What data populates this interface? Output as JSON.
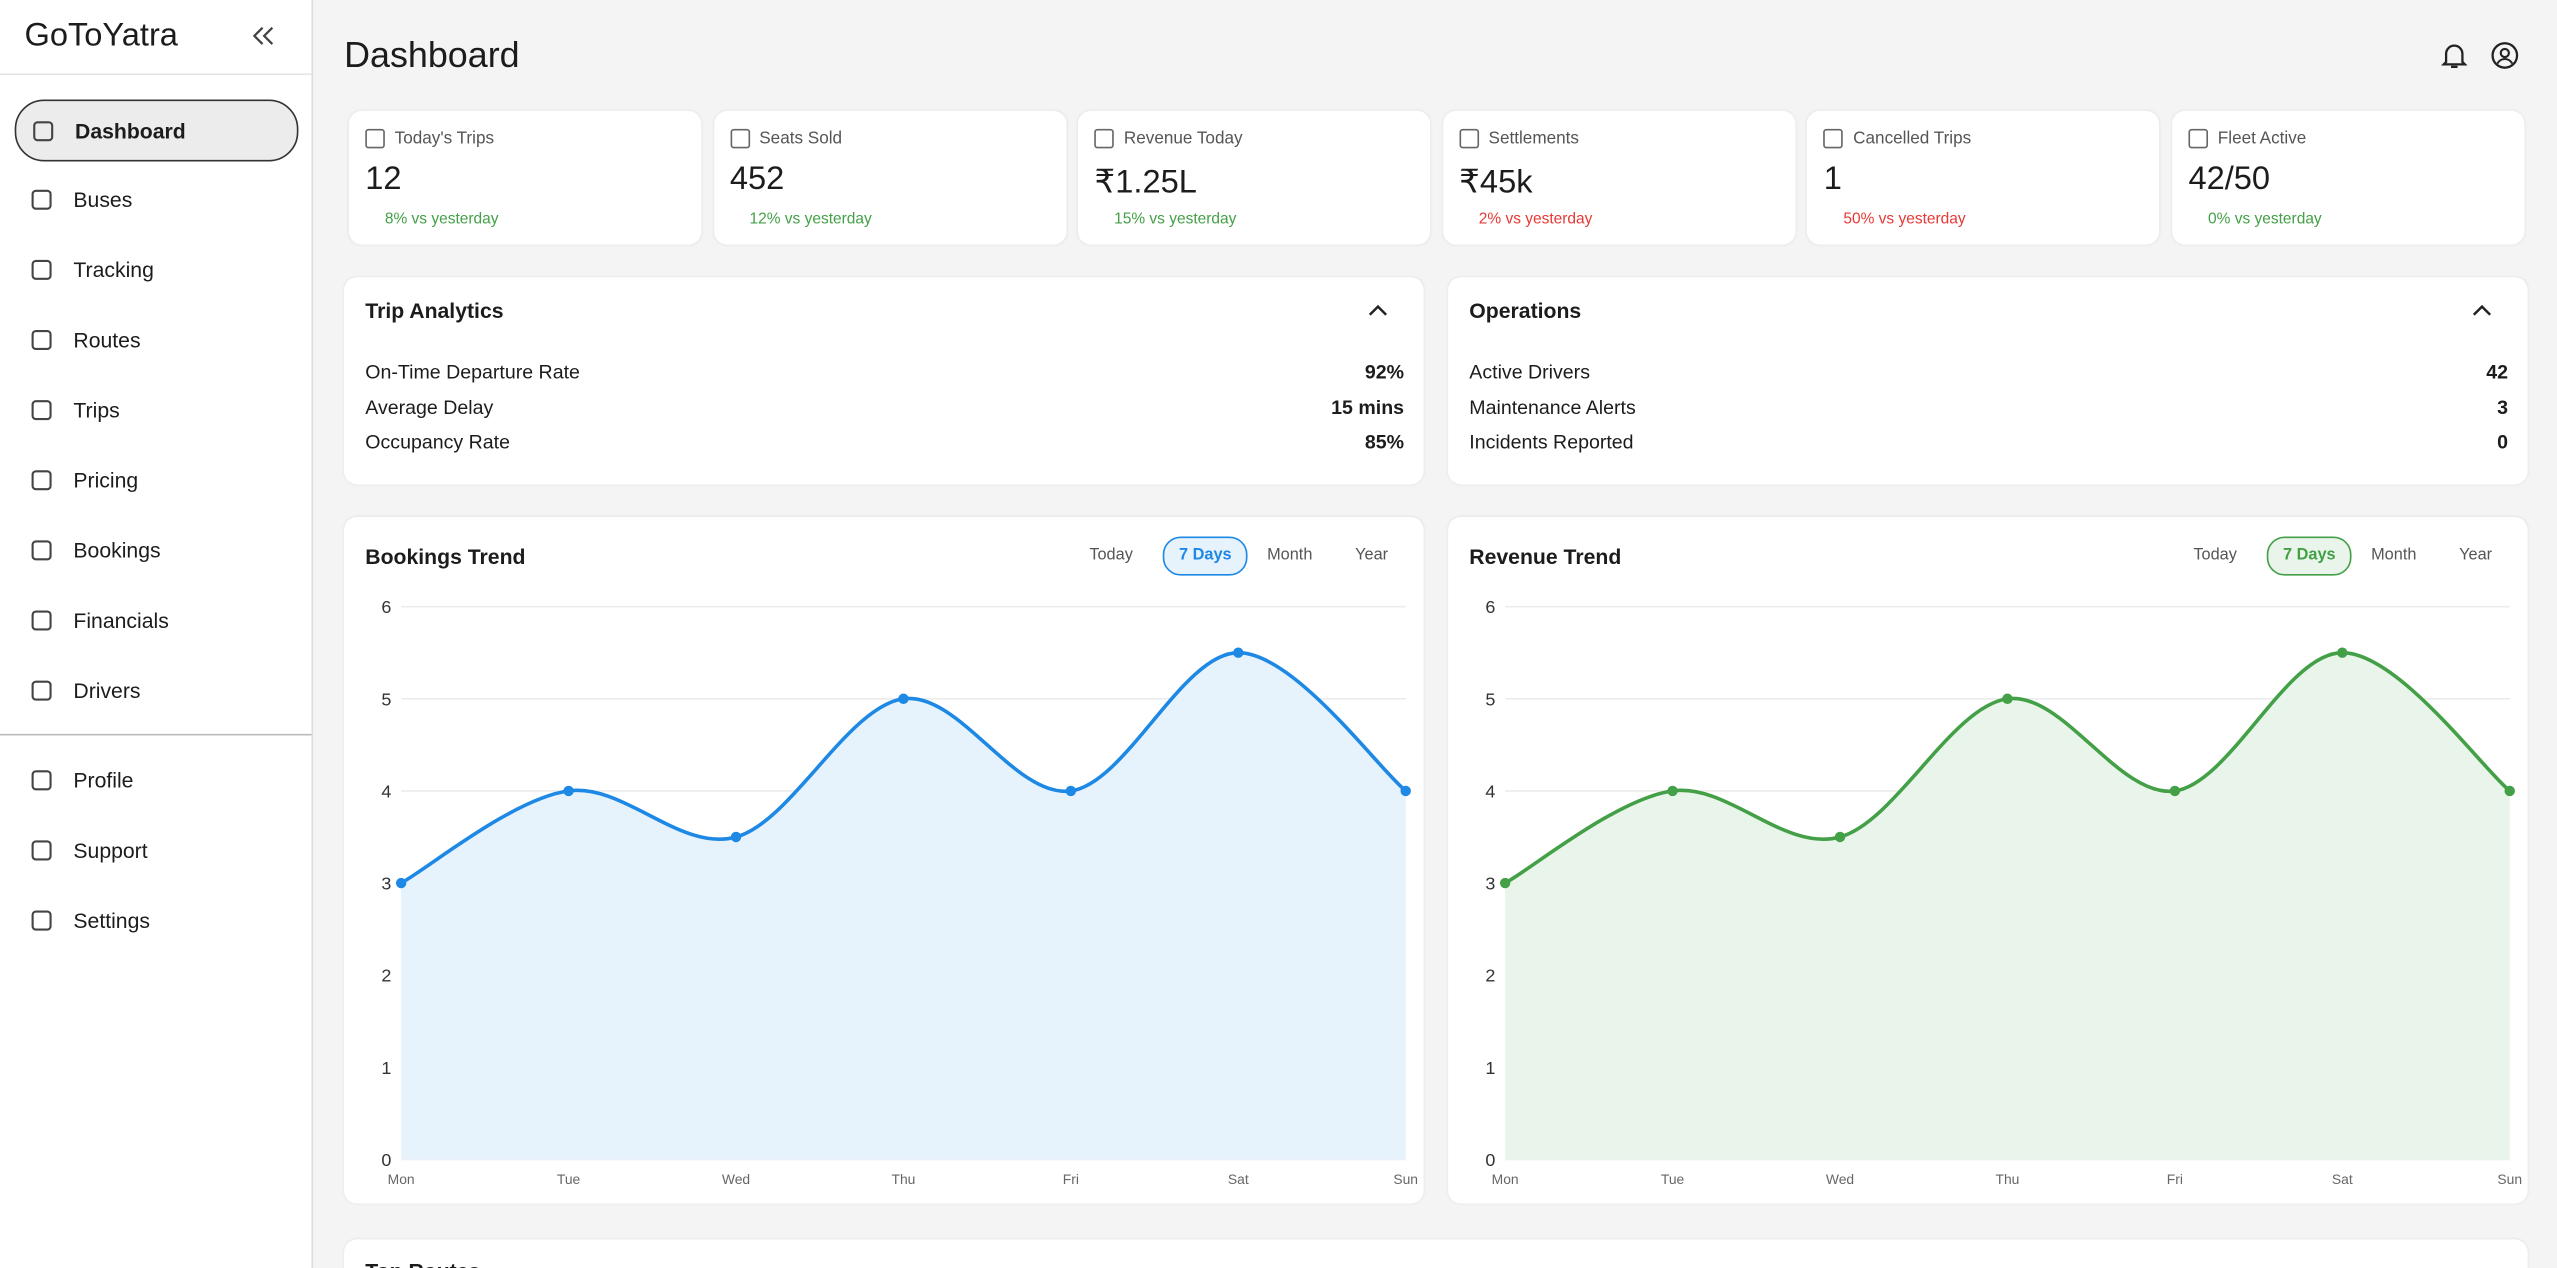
{
  "sidebar": {
    "brand": "GoToYatra",
    "nav": [
      "Dashboard",
      "Buses",
      "Tracking",
      "Routes",
      "Trips",
      "Pricing",
      "Bookings",
      "Financials",
      "Drivers"
    ],
    "active": "Dashboard",
    "secondary": [
      "Profile",
      "Support",
      "Settings"
    ]
  },
  "header": {
    "title": "Dashboard"
  },
  "stats": [
    {
      "label": "Today's Trips",
      "value": "12",
      "change": "8% vs yesterday",
      "color": "#43a047"
    },
    {
      "label": "Seats Sold",
      "value": "452",
      "change": "12% vs yesterday",
      "color": "#43a047"
    },
    {
      "label": "Revenue Today",
      "value": "₹1.25L",
      "change": "15% vs yesterday",
      "color": "#43a047"
    },
    {
      "label": "Settlements",
      "value": "₹45k",
      "change": "2% vs yesterday",
      "color": "#e53935"
    },
    {
      "label": "Cancelled Trips",
      "value": "1",
      "change": "50% vs yesterday",
      "color": "#e53935"
    },
    {
      "label": "Fleet Active",
      "value": "42/50",
      "change": "0% vs yesterday",
      "color": "#43a047"
    }
  ],
  "panels": [
    {
      "title": "Trip Analytics",
      "rows": [
        [
          "On-Time Departure Rate",
          "92%"
        ],
        [
          "Average Delay",
          "15 mins"
        ],
        [
          "Occupancy Rate",
          "85%"
        ]
      ]
    },
    {
      "title": "Operations",
      "rows": [
        [
          "Active Drivers",
          "42"
        ],
        [
          "Maintenance Alerts",
          "3"
        ],
        [
          "Incidents Reported",
          "0"
        ]
      ]
    }
  ],
  "charts": [
    {
      "type": "line",
      "title": "Bookings Trend",
      "ranges": [
        "Today",
        "7 Days",
        "Month",
        "Year"
      ],
      "active_range": "7 Days",
      "color": "#1e88e5",
      "area_color": "#e6f2fc",
      "categories": [
        "Mon",
        "Tue",
        "Wed",
        "Thu",
        "Fri",
        "Sat",
        "Sun"
      ],
      "values": [
        3,
        4,
        3.5,
        5,
        4,
        5.5,
        4
      ],
      "ylim": [
        0,
        6
      ],
      "yticks": [
        0,
        1,
        2,
        3,
        4,
        5,
        6
      ],
      "grid": true
    },
    {
      "type": "line",
      "title": "Revenue Trend",
      "ranges": [
        "Today",
        "7 Days",
        "Month",
        "Year"
      ],
      "active_range": "7 Days",
      "color": "#43a047",
      "area_color": "#e9f5ea",
      "categories": [
        "Mon",
        "Tue",
        "Wed",
        "Thu",
        "Fri",
        "Sat",
        "Sun"
      ],
      "values": [
        3,
        4,
        3.5,
        5,
        4,
        5.5,
        4
      ],
      "ylim": [
        0,
        6
      ],
      "yticks": [
        0,
        1,
        2,
        3,
        4,
        5,
        6
      ],
      "grid": true
    }
  ],
  "bottom": {
    "title": "Top Routes"
  }
}
